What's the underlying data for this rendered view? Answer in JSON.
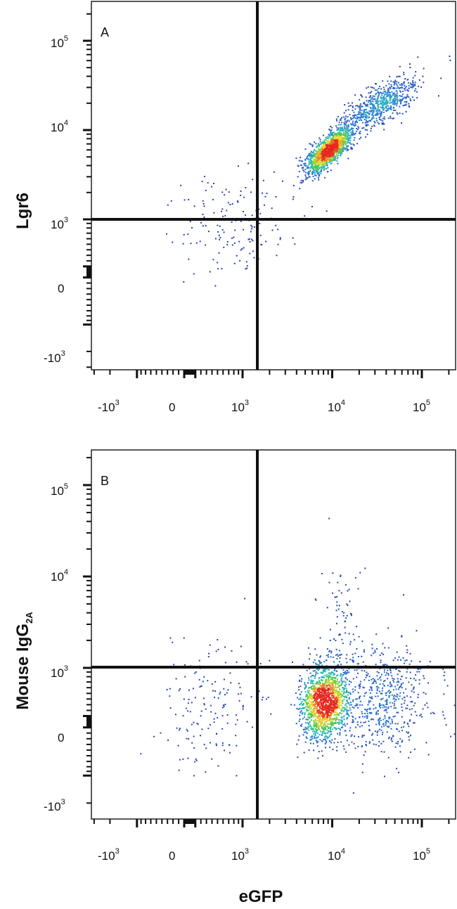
{
  "chart_data": [
    {
      "type": "scatter",
      "panel": "A",
      "ylabel": "Lgr6",
      "xlabel": "",
      "x_scale": "biexponential",
      "y_scale": "biexponential",
      "x_ticks": [
        {
          "pre": "-10",
          "sup": "3"
        },
        {
          "pre": "0",
          "sup": ""
        },
        {
          "pre": "10",
          "sup": "3"
        },
        {
          "pre": "10",
          "sup": "4"
        },
        {
          "pre": "10",
          "sup": "5"
        }
      ],
      "y_ticks": [
        {
          "pre": "10",
          "sup": "5"
        },
        {
          "pre": "10",
          "sup": "4"
        },
        {
          "pre": "10",
          "sup": "3"
        },
        {
          "pre": "0",
          "sup": ""
        },
        {
          "pre": "-10",
          "sup": "3"
        }
      ],
      "quadrant_gate": {
        "x": 1500,
        "y": 1100
      },
      "populations": [
        {
          "description": "main",
          "center": {
            "eGFP": 9000,
            "Lgr6": 6000
          },
          "count": 1400
        },
        {
          "description": "high tail",
          "center": {
            "eGFP": 35000,
            "Lgr6": 20000
          },
          "count": 650
        },
        {
          "description": "low tail",
          "center": {
            "eGFP": 900,
            "Lgr6": 900
          },
          "count": 160
        }
      ]
    },
    {
      "type": "scatter",
      "panel": "B",
      "ylabel": "Mouse IgG",
      "ylabel_subscript": "2A",
      "xlabel": "eGFP",
      "x_scale": "biexponential",
      "y_scale": "biexponential",
      "x_ticks": [
        {
          "pre": "-10",
          "sup": "3"
        },
        {
          "pre": "0",
          "sup": ""
        },
        {
          "pre": "10",
          "sup": "3"
        },
        {
          "pre": "10",
          "sup": "4"
        },
        {
          "pre": "10",
          "sup": "5"
        }
      ],
      "y_ticks": [
        {
          "pre": "10",
          "sup": "5"
        },
        {
          "pre": "10",
          "sup": "4"
        },
        {
          "pre": "10",
          "sup": "3"
        },
        {
          "pre": "0",
          "sup": ""
        },
        {
          "pre": "-10",
          "sup": "3"
        }
      ],
      "quadrant_gate": {
        "x": 1500,
        "y": 1100
      },
      "populations": [
        {
          "description": "main",
          "center": {
            "eGFP": 8000,
            "Mouse IgG2A": 350
          },
          "count": 1500
        },
        {
          "description": "right spread",
          "center": {
            "eGFP": 35000,
            "Mouse IgG2A": 400
          },
          "count": 600
        },
        {
          "description": "left negative",
          "center": {
            "eGFP": 300,
            "Mouse IgG2A": 250
          },
          "count": 160
        },
        {
          "description": "upward streak",
          "center": {
            "eGFP": 12000,
            "Mouse IgG2A": 3000
          },
          "count": 90
        }
      ]
    }
  ]
}
